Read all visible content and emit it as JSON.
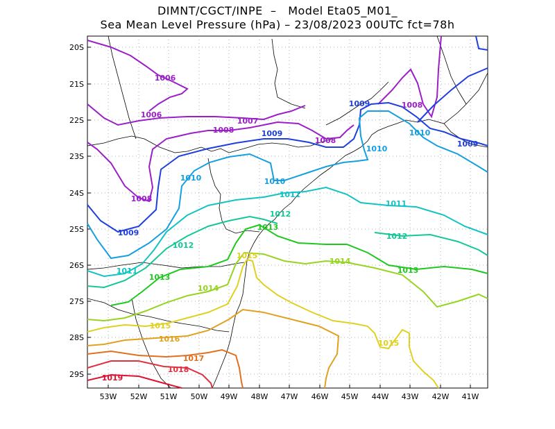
{
  "title": {
    "line1": "DIMNT/CGCT/INPE  –   Model Eta05_M01_",
    "line2": "Sea Mean Level Pressure (hPa) – 23/08/2023 00UTC fct=78h"
  },
  "map": {
    "lat_labels": [
      "20S",
      "21S",
      "22S",
      "23S",
      "24S",
      "25S",
      "26S",
      "27S",
      "28S",
      "29S"
    ],
    "lon_labels": [
      "53W",
      "52W",
      "51W",
      "50W",
      "49W",
      "48W",
      "47W",
      "46W",
      "45W",
      "44W",
      "43W",
      "42W",
      "41W"
    ],
    "isobar_labels": [
      {
        "text": "1006",
        "color": "#9b1fc8"
      },
      {
        "text": "1006",
        "color": "#9b1fc8"
      },
      {
        "text": "1007",
        "color": "#9b1fc8"
      },
      {
        "text": "1008",
        "color": "#9b1fc8"
      },
      {
        "text": "1008",
        "color": "#9b1fc8"
      },
      {
        "text": "1008",
        "color": "#9b1fc8"
      },
      {
        "text": "1008",
        "color": "#9b1fc8"
      },
      {
        "text": "1009",
        "color": "#1e3fe0"
      },
      {
        "text": "1009",
        "color": "#1e3fe0"
      },
      {
        "text": "1009",
        "color": "#1e3fe0"
      },
      {
        "text": "1009",
        "color": "#1e3fe0"
      },
      {
        "text": "1010",
        "color": "#159fe0"
      },
      {
        "text": "1010",
        "color": "#159fe0"
      },
      {
        "text": "1010",
        "color": "#159fe0"
      },
      {
        "text": "1010",
        "color": "#159fe0"
      },
      {
        "text": "1011",
        "color": "#13c3c3"
      },
      {
        "text": "1011",
        "color": "#13c3c3"
      },
      {
        "text": "1011",
        "color": "#13c3c3"
      },
      {
        "text": "1012",
        "color": "#13c896"
      },
      {
        "text": "1012",
        "color": "#13c896"
      },
      {
        "text": "1012",
        "color": "#13c896"
      },
      {
        "text": "1013",
        "color": "#1fc81f"
      },
      {
        "text": "1013",
        "color": "#1fc81f"
      },
      {
        "text": "1013",
        "color": "#1fc81f"
      },
      {
        "text": "1014",
        "color": "#96d41f"
      },
      {
        "text": "1014",
        "color": "#96d41f"
      },
      {
        "text": "1015",
        "color": "#e0d020"
      },
      {
        "text": "1015",
        "color": "#e0d020"
      },
      {
        "text": "1015",
        "color": "#e0d020"
      },
      {
        "text": "1016",
        "color": "#e0a020"
      },
      {
        "text": "1017",
        "color": "#e07020"
      },
      {
        "text": "1018",
        "color": "#e03040"
      },
      {
        "text": "1019",
        "color": "#e01030"
      }
    ]
  }
}
